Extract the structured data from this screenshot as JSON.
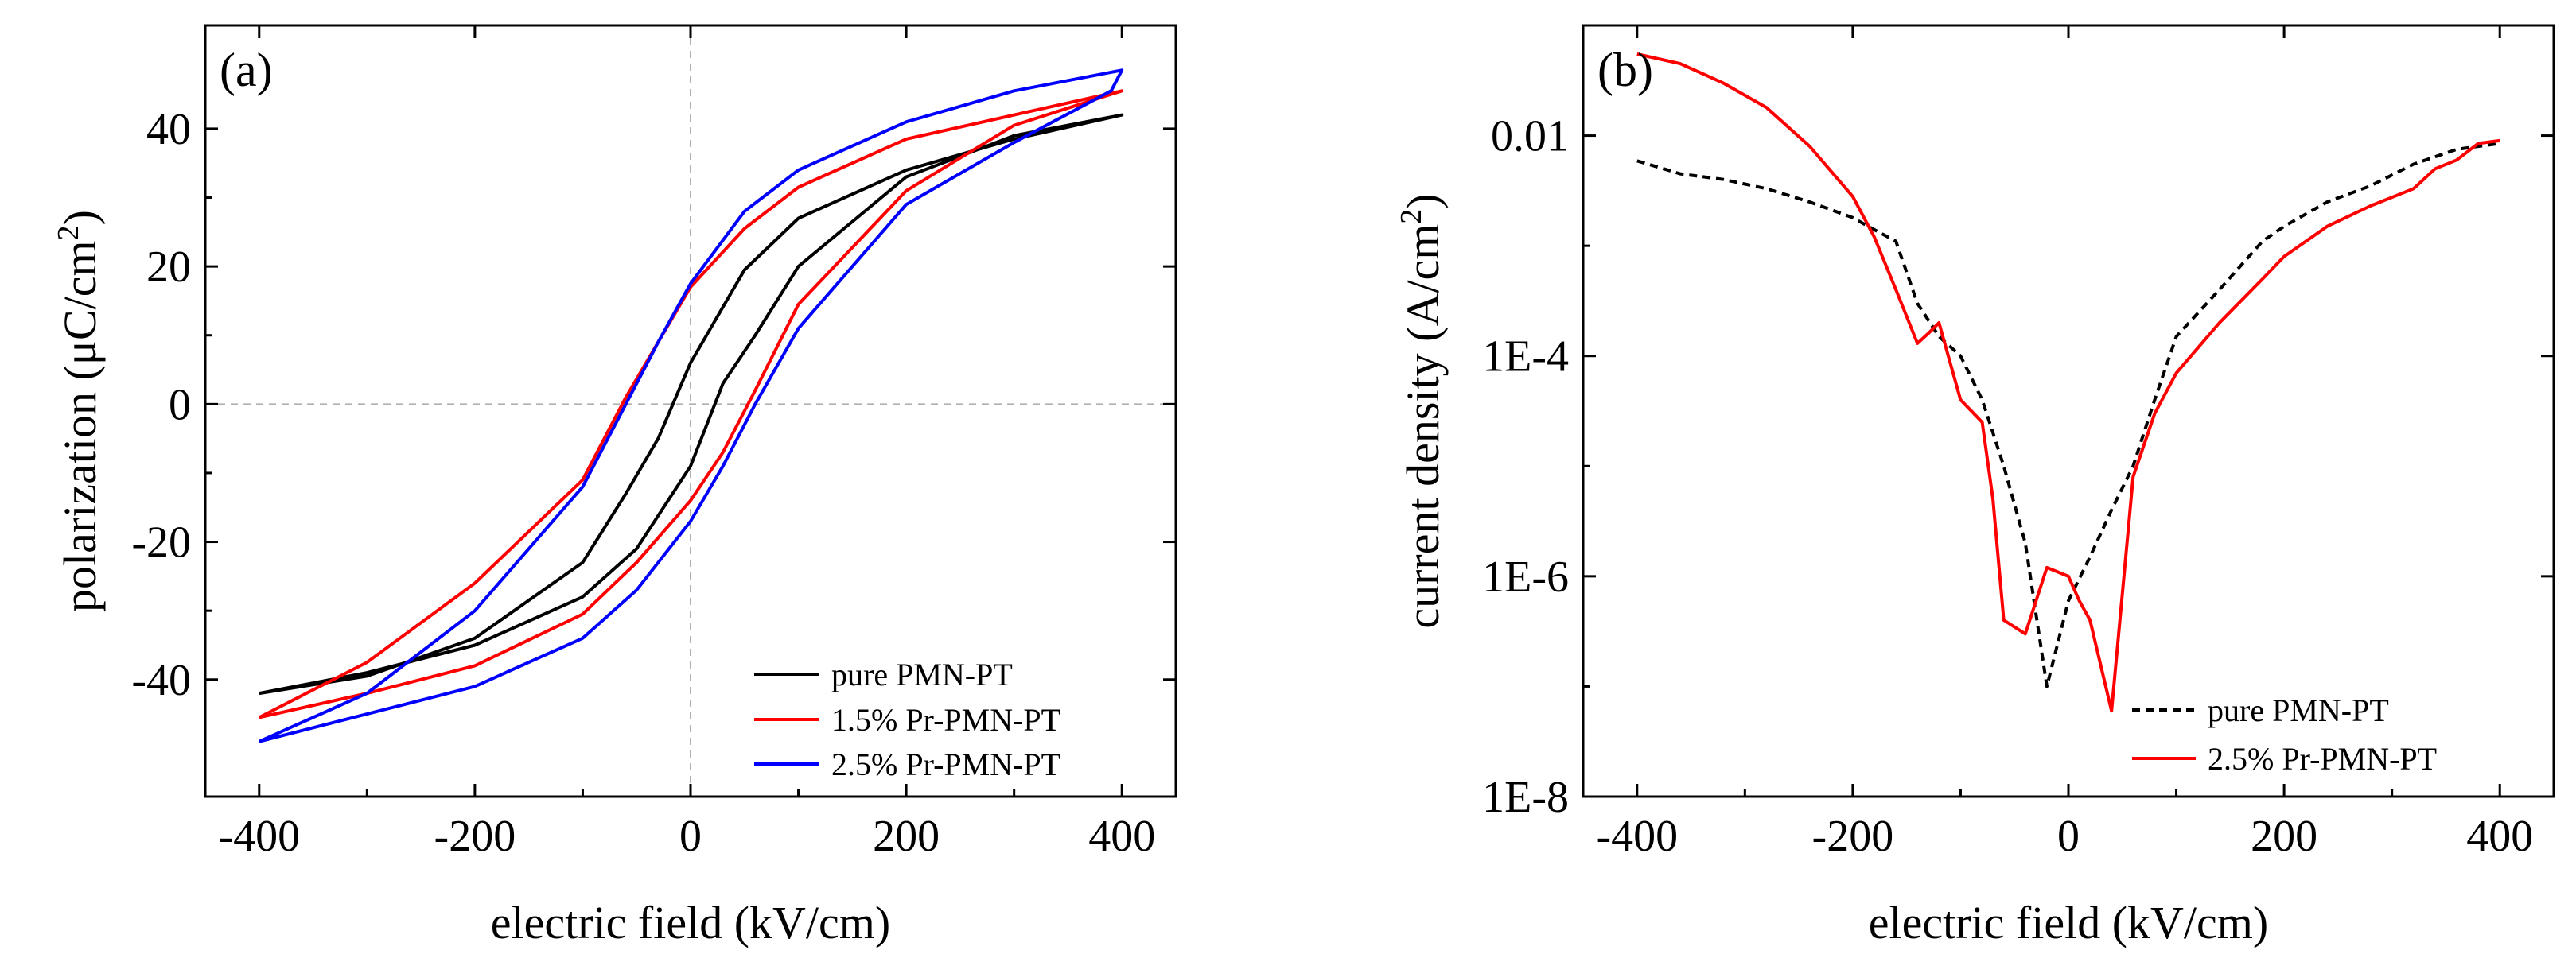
{
  "colors": {
    "pure": "#000000",
    "pr15": "#ff0000",
    "pr25": "#0000ff",
    "refline": "#b0b0b0"
  },
  "chart_data": [
    {
      "type": "line",
      "panel_label": "(a)",
      "title": "",
      "xlabel": "electric field (kV/cm)",
      "ylabel_main": "polarization (μC/cm",
      "ylabel_sup": "2",
      "ylabel_end": ")",
      "xlim": [
        -450,
        450
      ],
      "ylim": [
        -57,
        55
      ],
      "xticks": [
        -400,
        -200,
        0,
        200,
        400
      ],
      "xtick_labels": [
        "-400",
        "-200",
        "0",
        "200",
        "400"
      ],
      "yticks": [
        -40,
        -20,
        0,
        20,
        40
      ],
      "ytick_labels": [
        "-40",
        "-20",
        "0",
        "20",
        "40"
      ],
      "legend": [
        "pure PMN-PT",
        "1.5% Pr-PMN-PT",
        "2.5% Pr-PMN-PT"
      ],
      "legend_position": "bottom-right",
      "series": [
        {
          "name": "pure PMN-PT",
          "color": "#000000",
          "dash": "solid",
          "x": [
            -400,
            -300,
            -200,
            -100,
            -60,
            -30,
            0,
            50,
            100,
            200,
            300,
            400,
            300,
            200,
            100,
            60,
            30,
            0,
            -50,
            -100,
            -200,
            -300,
            -400
          ],
          "y": [
            -42,
            -39.5,
            -34,
            -23,
            -13,
            -5,
            6,
            19.5,
            27,
            34,
            38.5,
            42,
            39,
            33,
            20,
            10,
            3,
            -9,
            -21,
            -28,
            -35,
            -39,
            -42
          ]
        },
        {
          "name": "1.5% Pr-PMN-PT",
          "color": "#ff0000",
          "dash": "solid",
          "x": [
            -400,
            -300,
            -200,
            -100,
            -60,
            -30,
            0,
            50,
            100,
            200,
            300,
            400,
            300,
            200,
            100,
            60,
            30,
            0,
            -50,
            -100,
            -200,
            -300,
            -400
          ],
          "y": [
            -45.5,
            -37.5,
            -26,
            -11,
            1,
            9,
            17,
            25.5,
            31.5,
            38.5,
            42,
            45.5,
            40.5,
            31,
            14.5,
            2,
            -7,
            -14,
            -23,
            -30.5,
            -38,
            -42,
            -45.5
          ]
        },
        {
          "name": "2.5% Pr-PMN-PT",
          "color": "#0000ff",
          "dash": "solid",
          "x": [
            -400,
            -300,
            -200,
            -100,
            -60,
            -30,
            0,
            50,
            100,
            200,
            300,
            400,
            390,
            300,
            200,
            100,
            60,
            30,
            0,
            -50,
            -100,
            -200,
            -300,
            -400
          ],
          "y": [
            -49,
            -42,
            -30,
            -12,
            0,
            9,
            17.5,
            28,
            34,
            41,
            45.5,
            48.5,
            45.5,
            38,
            29,
            11,
            0,
            -9,
            -17,
            -27,
            -34,
            -41,
            -45,
            -49
          ]
        }
      ]
    },
    {
      "type": "line",
      "panel_label": "(b)",
      "title": "",
      "xlabel": "electric field (kV/cm)",
      "ylabel_main": "current density (A/cm",
      "ylabel_sup": "2",
      "ylabel_end": ")",
      "yscale": "log",
      "xlim": [
        -450,
        450
      ],
      "ylim": [
        1e-08,
        0.1
      ],
      "xticks": [
        -400,
        -200,
        0,
        200,
        400
      ],
      "xtick_labels": [
        "-400",
        "-200",
        "0",
        "200",
        "400"
      ],
      "yticks": [
        1e-08,
        1e-06,
        0.0001,
        0.01
      ],
      "ytick_labels": [
        "1E-8",
        "1E-6",
        "1E-4",
        "0.01"
      ],
      "legend": [
        "pure PMN-PT",
        "2.5% Pr-PMN-PT"
      ],
      "legend_position": "bottom-right",
      "series": [
        {
          "name": "pure PMN-PT",
          "color": "#000000",
          "dash": "dashed",
          "x": [
            -400,
            -360,
            -320,
            -280,
            -240,
            -200,
            -180,
            -160,
            -140,
            -120,
            -100,
            -80,
            -60,
            -40,
            -20,
            0,
            20,
            40,
            60,
            80,
            100,
            140,
            180,
            200,
            240,
            280,
            320,
            360,
            400
          ],
          "y": [
            0.0059,
            0.0045,
            0.004,
            0.0033,
            0.0025,
            0.0018,
            0.0014,
            0.0011,
            0.0003,
            0.00015,
            0.0001,
            4e-05,
            1e-05,
            2e-06,
            1e-07,
            6e-07,
            1.5e-06,
            4e-06,
            1e-05,
            4e-05,
            0.00015,
            0.0004,
            0.0011,
            0.0015,
            0.0025,
            0.0035,
            0.0055,
            0.0075,
            0.0085
          ]
        },
        {
          "name": "2.5% Pr-PMN-PT",
          "color": "#ff0000",
          "dash": "solid",
          "x": [
            -400,
            -360,
            -320,
            -280,
            -240,
            -200,
            -180,
            -160,
            -140,
            -130,
            -120,
            -100,
            -80,
            -70,
            -60,
            -40,
            -20,
            0,
            10,
            20,
            40,
            60,
            80,
            100,
            140,
            180,
            200,
            240,
            280,
            320,
            340,
            360,
            380,
            400
          ],
          "y": [
            0.055,
            0.045,
            0.03,
            0.018,
            0.008,
            0.0028,
            0.0012,
            0.0004,
            0.00013,
            0.00016,
            0.0002,
            4e-05,
            2.5e-05,
            5e-06,
            4e-07,
            3e-07,
            1.2e-06,
            1e-06,
            6e-07,
            4e-07,
            6e-08,
            8e-06,
            3e-05,
            7e-05,
            0.0002,
            0.0005,
            0.0008,
            0.0015,
            0.0023,
            0.0033,
            0.005,
            0.006,
            0.0085,
            0.009
          ]
        }
      ]
    }
  ]
}
